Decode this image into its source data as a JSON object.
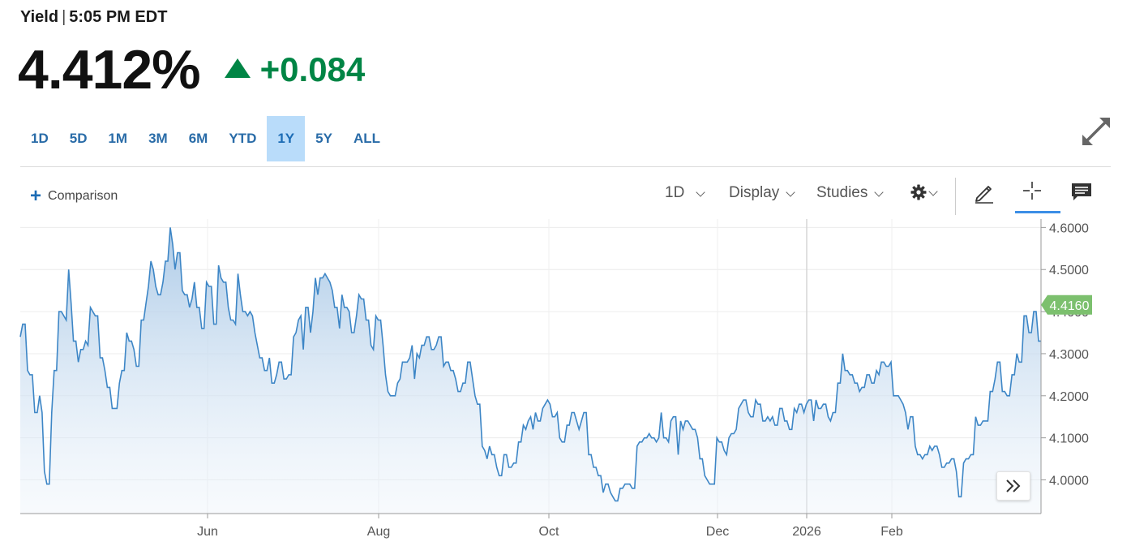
{
  "header": {
    "label": "Yield",
    "separator": "|",
    "time": "5:05 PM EDT"
  },
  "quote": {
    "price": "4.412%",
    "change": "+0.084",
    "direction": "up",
    "up_color": "#008545"
  },
  "ranges": [
    "1D",
    "5D",
    "1M",
    "3M",
    "6M",
    "YTD",
    "1Y",
    "5Y",
    "ALL"
  ],
  "active_range": "1Y",
  "toolbar": {
    "comparison_label": "Comparison",
    "interval_label": "1D",
    "display_label": "Display",
    "studies_label": "Studies",
    "icons": [
      "gear-icon",
      "pencil-icon",
      "crosshair-icon",
      "comment-icon",
      "expand-icon",
      "double-chevron-right-icon"
    ]
  },
  "chart_data": {
    "type": "area",
    "xlabel": "",
    "ylabel": "",
    "x_ticks": [
      "Jun",
      "Aug",
      "Oct",
      "Dec",
      "2026",
      "Feb"
    ],
    "y_ticks": [
      "4.6000",
      "4.5000",
      "4.4000",
      "4.3000",
      "4.2000",
      "4.1000",
      "4.0000"
    ],
    "ylim": [
      3.92,
      4.62
    ],
    "last_value_label": "4.4160",
    "line_color": "#3d86c6",
    "last_value_color": "#7cc06e",
    "grid": true,
    "series": [
      {
        "values": [
          4.34,
          4.37,
          4.37,
          4.26,
          4.25,
          4.25,
          4.16,
          4.16,
          4.2,
          4.16,
          4.02,
          3.99,
          3.99,
          4.16,
          4.26,
          4.26,
          4.4,
          4.4,
          4.39,
          4.38,
          4.5,
          4.42,
          4.33,
          4.33,
          4.28,
          4.31,
          4.31,
          4.33,
          4.32,
          4.41,
          4.4,
          4.39,
          4.39,
          4.29,
          4.29,
          4.26,
          4.22,
          4.22,
          4.17,
          4.17,
          4.17,
          4.23,
          4.26,
          4.26,
          4.35,
          4.33,
          4.33,
          4.31,
          4.27,
          4.27,
          4.38,
          4.38,
          4.42,
          4.46,
          4.52,
          4.5,
          4.46,
          4.44,
          4.44,
          4.47,
          4.52,
          4.52,
          4.6,
          4.56,
          4.5,
          4.54,
          4.54,
          4.45,
          4.44,
          4.44,
          4.41,
          4.43,
          4.47,
          4.41,
          4.41,
          4.36,
          4.36,
          4.47,
          4.46,
          4.46,
          4.37,
          4.37,
          4.51,
          4.48,
          4.47,
          4.47,
          4.41,
          4.38,
          4.38,
          4.37,
          4.49,
          4.44,
          4.4,
          4.4,
          4.39,
          4.4,
          4.39,
          4.35,
          4.32,
          4.29,
          4.29,
          4.26,
          4.26,
          4.29,
          4.23,
          4.23,
          4.25,
          4.28,
          4.28,
          4.24,
          4.24,
          4.25,
          4.25,
          4.34,
          4.35,
          4.38,
          4.39,
          4.31,
          4.41,
          4.41,
          4.35,
          4.4,
          4.48,
          4.44,
          4.48,
          4.48,
          4.49,
          4.48,
          4.47,
          4.45,
          4.41,
          4.41,
          4.36,
          4.44,
          4.41,
          4.41,
          4.4,
          4.35,
          4.35,
          4.39,
          4.44,
          4.43,
          4.43,
          4.38,
          4.38,
          4.32,
          4.31,
          4.39,
          4.38,
          4.38,
          4.32,
          4.25,
          4.21,
          4.2,
          4.2,
          4.2,
          4.23,
          4.24,
          4.28,
          4.28,
          4.28,
          4.29,
          4.32,
          4.24,
          4.3,
          4.29,
          4.32,
          4.32,
          4.34,
          4.34,
          4.31,
          4.31,
          4.32,
          4.34,
          4.34,
          4.27,
          4.28,
          4.28,
          4.26,
          4.26,
          4.24,
          4.21,
          4.21,
          4.23,
          4.23,
          4.28,
          4.28,
          4.24,
          4.2,
          4.18,
          4.18,
          4.08,
          4.07,
          4.05,
          4.08,
          4.06,
          4.06,
          4.03,
          4.01,
          4.01,
          4.06,
          4.06,
          4.03,
          4.03,
          4.04,
          4.04,
          4.09,
          4.09,
          4.13,
          4.12,
          4.14,
          4.15,
          4.12,
          4.16,
          4.14,
          4.14,
          4.17,
          4.18,
          4.19,
          4.18,
          4.15,
          4.15,
          4.16,
          4.1,
          4.09,
          4.09,
          4.13,
          4.13,
          4.16,
          4.16,
          4.14,
          4.12,
          4.14,
          4.16,
          4.16,
          4.06,
          4.06,
          4.03,
          4.03,
          4.01,
          4.01,
          3.97,
          3.99,
          3.99,
          3.97,
          3.96,
          3.95,
          3.95,
          3.98,
          3.98,
          3.99,
          3.99,
          3.99,
          3.98,
          3.98,
          4.08,
          4.09,
          4.09,
          4.1,
          4.1,
          4.11,
          4.1,
          4.1,
          4.09,
          4.1,
          4.16,
          4.1,
          4.1,
          4.09,
          4.14,
          4.15,
          4.15,
          4.06,
          4.14,
          4.12,
          4.14,
          4.14,
          4.13,
          4.12,
          4.12,
          4.1,
          4.05,
          4.05,
          4.01,
          4.0,
          3.99,
          3.99,
          3.99,
          4.1,
          4.09,
          4.09,
          4.07,
          4.06,
          4.1,
          4.11,
          4.11,
          4.12,
          4.17,
          4.18,
          4.19,
          4.19,
          4.16,
          4.15,
          4.15,
          4.19,
          4.18,
          4.18,
          4.14,
          4.14,
          4.15,
          4.14,
          4.15,
          4.13,
          4.13,
          4.17,
          4.17,
          4.14,
          4.14,
          4.12,
          4.12,
          4.17,
          4.16,
          4.18,
          4.18,
          4.16,
          4.18,
          4.19,
          4.19,
          4.14,
          4.19,
          4.17,
          4.17,
          4.18,
          4.18,
          4.15,
          4.14,
          4.16,
          4.16,
          4.23,
          4.23,
          4.3,
          4.26,
          4.26,
          4.25,
          4.25,
          4.23,
          4.23,
          4.21,
          4.22,
          4.22,
          4.25,
          4.25,
          4.23,
          4.23,
          4.26,
          4.25,
          4.28,
          4.28,
          4.27,
          4.27,
          4.28,
          4.2,
          4.2,
          4.2,
          4.19,
          4.18,
          4.16,
          4.12,
          4.15,
          4.15,
          4.08,
          4.06,
          4.06,
          4.05,
          4.06,
          4.06,
          4.08,
          4.07,
          4.08,
          4.08,
          4.06,
          4.03,
          4.03,
          4.04,
          4.04,
          4.05,
          4.05,
          4.02,
          3.96,
          3.96,
          4.04,
          4.05,
          4.05,
          4.06,
          4.06,
          4.15,
          4.13,
          4.13,
          4.14,
          4.14,
          4.14,
          4.21,
          4.21,
          4.24,
          4.28,
          4.28,
          4.21,
          4.21,
          4.2,
          4.2,
          4.25,
          4.25,
          4.3,
          4.28,
          4.28,
          4.39,
          4.39,
          4.35,
          4.35,
          4.4,
          4.4,
          4.33,
          4.33
        ]
      }
    ]
  }
}
